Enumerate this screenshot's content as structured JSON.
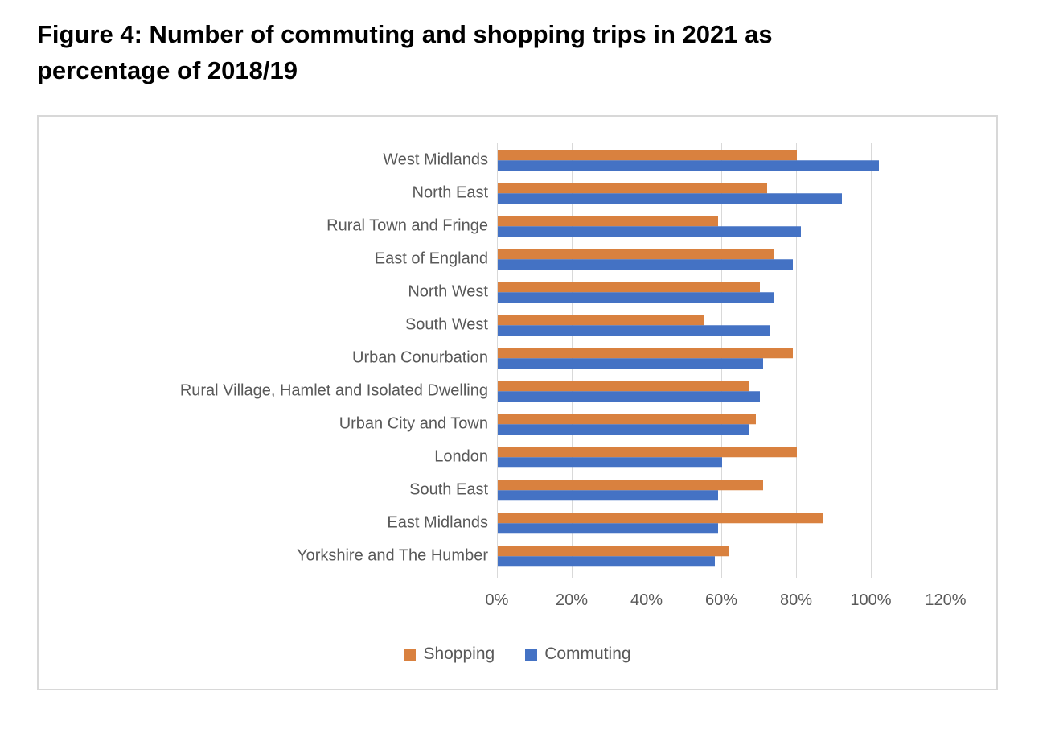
{
  "page": {
    "title_line1": "Figure 4: Number of commuting and shopping trips in 2021 as",
    "title_line2": "percentage of 2018/19"
  },
  "chart_data": {
    "type": "bar",
    "orientation": "horizontal",
    "title": "Figure 4: Number of commuting and shopping trips in 2021 as percentage of 2018/19",
    "categories": [
      "West Midlands",
      "North East",
      "Rural Town and Fringe",
      "East of England",
      "North West",
      "South West",
      "Urban Conurbation",
      "Rural Village, Hamlet and Isolated Dwelling",
      "Urban City and Town",
      "London",
      "South East",
      "East Midlands",
      "Yorkshire and The Humber"
    ],
    "series": [
      {
        "name": "Shopping",
        "color": "#D9813F",
        "values": [
          80,
          72,
          59,
          74,
          70,
          55,
          79,
          67,
          69,
          80,
          71,
          87,
          62
        ]
      },
      {
        "name": "Commuting",
        "color": "#4472C4",
        "values": [
          102,
          92,
          81,
          79,
          74,
          73,
          71,
          70,
          67,
          60,
          59,
          59,
          58
        ]
      }
    ],
    "x_ticks": [
      "0%",
      "20%",
      "40%",
      "60%",
      "80%",
      "100%",
      "120%"
    ],
    "xlim": [
      0,
      120
    ],
    "grid": true,
    "legend_position": "bottom"
  },
  "colors": {
    "bar_shopping": "#D9813F",
    "bar_commuting": "#4472C4",
    "gridline": "#D9D9D9",
    "axis_text": "#595959",
    "frame_border": "#D8D8D8",
    "title_text": "#000000"
  }
}
